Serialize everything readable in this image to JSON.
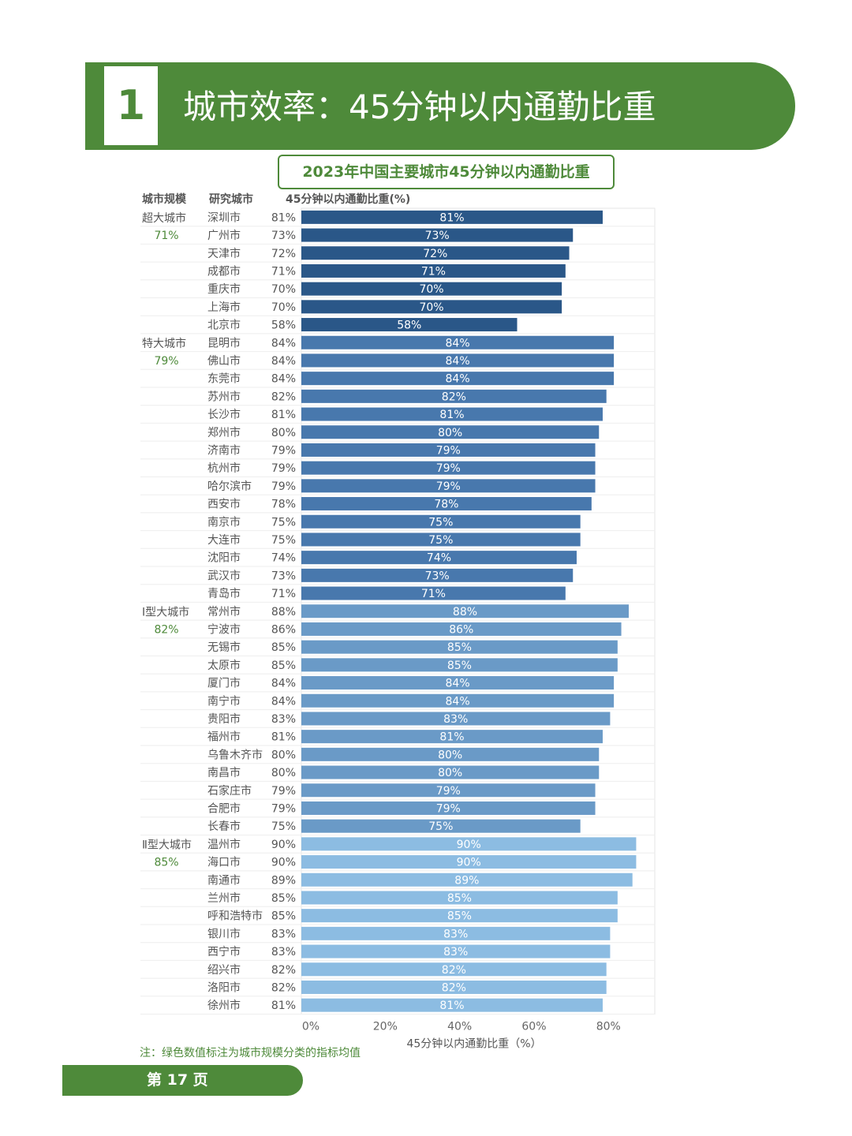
{
  "section": {
    "number": "1",
    "title": "城市效率：45分钟以内通勤比重"
  },
  "chart_title": "2023年中国主要城市45分钟以内通勤比重",
  "headers": {
    "scale": "城市规模",
    "city": "研究城市",
    "value": "45分钟以内通勤比重(%)"
  },
  "note": "注：绿色数值标注为城市规模分类的指标均值",
  "page": {
    "label": "第 17 页"
  },
  "colors": {
    "accent": "#4e8a3a",
    "super": "#2a5788",
    "mega": "#4878ad",
    "large1": "#6a9ac7",
    "large2": "#8cbce2"
  },
  "chart_data": {
    "type": "bar",
    "orientation": "horizontal",
    "xlabel": "45分钟以内通勤比重（%）",
    "xlim": [
      0,
      95
    ],
    "xticks": [
      "0%",
      "20%",
      "40%",
      "60%",
      "80%"
    ],
    "grid": true,
    "groups": [
      {
        "name": "超大城市",
        "mean": "71%",
        "color": "super",
        "cities": [
          "深圳市",
          "广州市",
          "天津市",
          "成都市",
          "重庆市",
          "上海市",
          "北京市"
        ],
        "values": [
          81,
          73,
          72,
          71,
          70,
          70,
          58
        ]
      },
      {
        "name": "特大城市",
        "mean": "79%",
        "color": "mega",
        "cities": [
          "昆明市",
          "佛山市",
          "东莞市",
          "苏州市",
          "长沙市",
          "郑州市",
          "济南市",
          "杭州市",
          "哈尔滨市",
          "西安市",
          "南京市",
          "大连市",
          "沈阳市",
          "武汉市",
          "青岛市"
        ],
        "values": [
          84,
          84,
          84,
          82,
          81,
          80,
          79,
          79,
          79,
          78,
          75,
          75,
          74,
          73,
          71
        ]
      },
      {
        "name": "Ⅰ型大城市",
        "mean": "82%",
        "color": "large1",
        "cities": [
          "常州市",
          "宁波市",
          "无锡市",
          "太原市",
          "厦门市",
          "南宁市",
          "贵阳市",
          "福州市",
          "乌鲁木齐市",
          "南昌市",
          "石家庄市",
          "合肥市",
          "长春市"
        ],
        "values": [
          88,
          86,
          85,
          85,
          84,
          84,
          83,
          81,
          80,
          80,
          79,
          79,
          75
        ]
      },
      {
        "name": "Ⅱ型大城市",
        "mean": "85%",
        "color": "large2",
        "cities": [
          "温州市",
          "海口市",
          "南通市",
          "兰州市",
          "呼和浩特市",
          "银川市",
          "西宁市",
          "绍兴市",
          "洛阳市",
          "徐州市"
        ],
        "values": [
          90,
          90,
          89,
          85,
          85,
          83,
          83,
          82,
          82,
          81
        ]
      }
    ]
  }
}
